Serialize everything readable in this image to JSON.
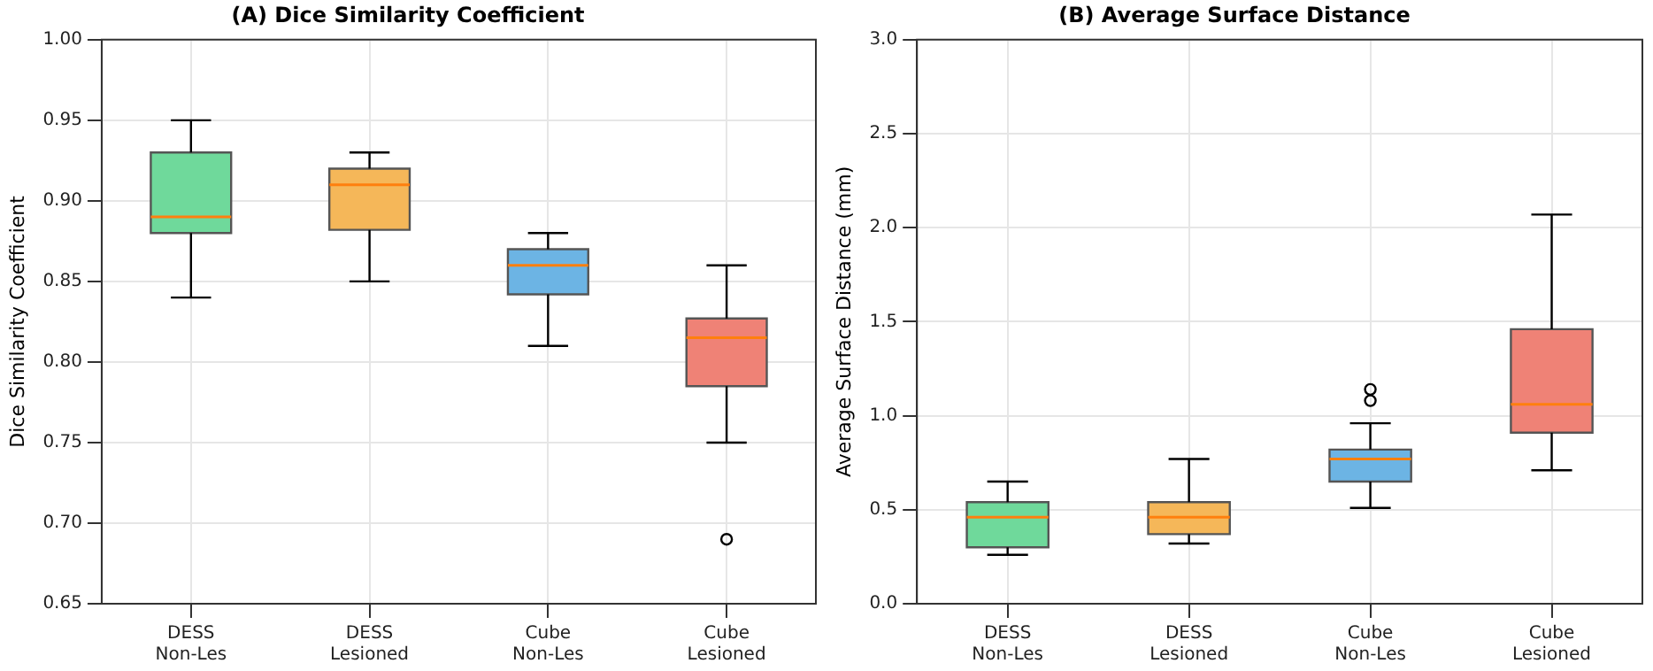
{
  "chart_data": [
    {
      "type": "box",
      "title": "(A) Dice Similarity Coefficient",
      "ylabel": "Dice Similarity Coefficient",
      "categories": [
        "DESS\nNon-Les",
        "DESS\nLesioned",
        "Cube\nNon-Les",
        "Cube\nLesioned"
      ],
      "colors": [
        "#6fd99b",
        "#f5b759",
        "#6cb4e4",
        "#ef8276"
      ],
      "boxes": [
        {
          "low": 0.84,
          "q1": 0.88,
          "median": 0.89,
          "q3": 0.93,
          "high": 0.95
        },
        {
          "low": 0.85,
          "q1": 0.882,
          "median": 0.91,
          "q3": 0.92,
          "high": 0.93
        },
        {
          "low": 0.81,
          "q1": 0.842,
          "median": 0.86,
          "q3": 0.87,
          "high": 0.88
        },
        {
          "low": 0.75,
          "q1": 0.785,
          "median": 0.815,
          "q3": 0.827,
          "high": 0.86,
          "outliers": [
            0.69
          ]
        }
      ],
      "ylim": [
        0.65,
        1.0
      ],
      "yticks": [
        {
          "value": 0.65,
          "label": "0.65"
        },
        {
          "value": 0.7,
          "label": "0.70"
        },
        {
          "value": 0.75,
          "label": "0.75"
        },
        {
          "value": 0.8,
          "label": "0.80"
        },
        {
          "value": 0.85,
          "label": "0.85"
        },
        {
          "value": 0.9,
          "label": "0.90"
        },
        {
          "value": 0.95,
          "label": "0.95"
        },
        {
          "value": 1.0,
          "label": "1.00"
        }
      ],
      "grid": true,
      "legend": false
    },
    {
      "type": "box",
      "title": "(B) Average Surface Distance",
      "ylabel": "Average Surface Distance (mm)",
      "categories": [
        "DESS\nNon-Les",
        "DESS\nLesioned",
        "Cube\nNon-Les",
        "Cube\nLesioned"
      ],
      "colors": [
        "#6fd99b",
        "#f5b759",
        "#6cb4e4",
        "#ef8276"
      ],
      "boxes": [
        {
          "low": 0.26,
          "q1": 0.3,
          "median": 0.46,
          "q3": 0.54,
          "high": 0.65
        },
        {
          "low": 0.32,
          "q1": 0.37,
          "median": 0.46,
          "q3": 0.54,
          "high": 0.77
        },
        {
          "low": 0.51,
          "q1": 0.65,
          "median": 0.77,
          "q3": 0.82,
          "high": 0.96,
          "outliers": [
            1.08,
            1.14
          ]
        },
        {
          "low": 0.71,
          "q1": 0.91,
          "median": 1.06,
          "q3": 1.46,
          "high": 2.07
        }
      ],
      "ylim": [
        0,
        3.0
      ],
      "yticks": [
        {
          "value": 0,
          "label": "0.0"
        },
        {
          "value": 0.5,
          "label": "0.5"
        },
        {
          "value": 1.0,
          "label": "1.0"
        },
        {
          "value": 1.5,
          "label": "1.5"
        },
        {
          "value": 2.0,
          "label": "2.0"
        },
        {
          "value": 2.5,
          "label": "2.5"
        },
        {
          "value": 3.0,
          "label": "3.0"
        }
      ],
      "grid": true,
      "legend": false
    }
  ]
}
